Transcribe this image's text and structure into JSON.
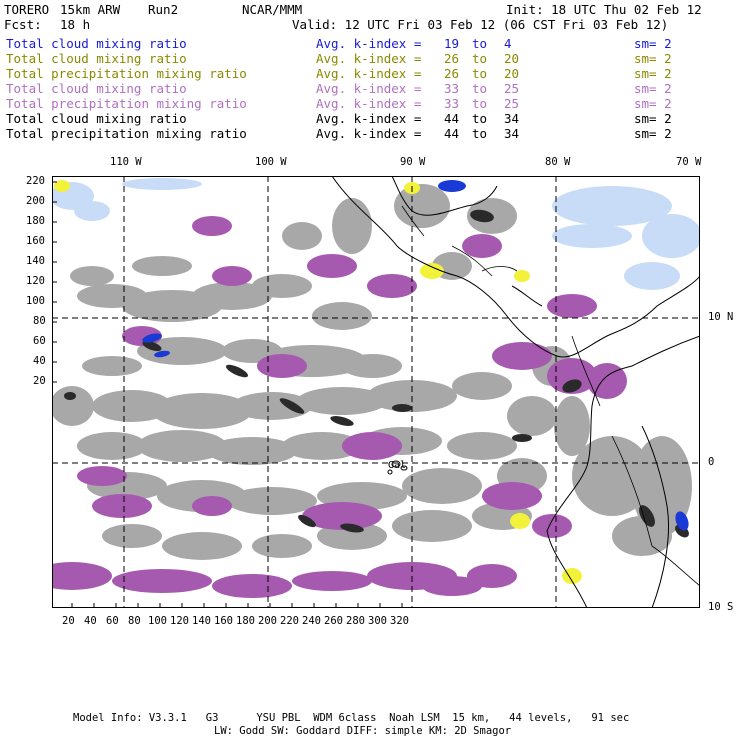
{
  "header": {
    "model": "TORERO",
    "resolution": "15km ARW",
    "run": "Run2",
    "org": "NCAR/MMM",
    "init": "Init: 18 UTC Thu 02 Feb 12",
    "fcst_label": "Fcst:",
    "fcst_value": "18 h",
    "valid": "Valid: 12 UTC Fri 03 Feb 12 (06 CST Fri 03 Feb 12)"
  },
  "legend": [
    {
      "field": "Total cloud mixing ratio",
      "kindex": "Avg. k-index =",
      "from": "19",
      "to_word": "to",
      "to": "4",
      "sm": "sm= 2",
      "color": "#1a1ad6"
    },
    {
      "field": "Total cloud mixing ratio",
      "kindex": "Avg. k-index =",
      "from": "26",
      "to_word": "to",
      "to": "20",
      "sm": "sm= 2",
      "color": "#8a8a00"
    },
    {
      "field": "Total precipitation mixing ratio",
      "kindex": "Avg. k-index =",
      "from": "26",
      "to_word": "to",
      "to": "20",
      "sm": "sm= 2",
      "color": "#8a8a00"
    },
    {
      "field": "Total cloud mixing ratio",
      "kindex": "Avg. k-index =",
      "from": "33",
      "to_word": "to",
      "to": "25",
      "sm": "sm= 2",
      "color": "#b070c0"
    },
    {
      "field": "Total precipitation mixing ratio",
      "kindex": "Avg. k-index =",
      "from": "33",
      "to_word": "to",
      "to": "25",
      "sm": "sm= 2",
      "color": "#b070c0"
    },
    {
      "field": "Total cloud mixing ratio",
      "kindex": "Avg. k-index =",
      "from": "44",
      "to_word": "to",
      "to": "34",
      "sm": "sm= 2",
      "color": "#000000"
    },
    {
      "field": "Total precipitation mixing ratio",
      "kindex": "Avg. k-index =",
      "from": "44",
      "to_word": "to",
      "to": "34",
      "sm": "sm= 2",
      "color": "#000000"
    }
  ],
  "map": {
    "longitude_labels": [
      "110 W",
      "100 W",
      "90 W",
      "80 W",
      "70 W"
    ],
    "latitude_labels": [
      "10 N",
      "0",
      "10 S"
    ],
    "y_axis_ticks": [
      "220",
      "200",
      "180",
      "160",
      "140",
      "120",
      "100",
      "80",
      "60",
      "40",
      "20"
    ],
    "x_axis_ticks": [
      "20",
      "40",
      "60",
      "80",
      "100",
      "120",
      "140",
      "160",
      "180",
      "200",
      "220",
      "240",
      "260",
      "280",
      "300",
      "320"
    ],
    "place_label": "Gal",
    "colors": {
      "cloud_gray": "#a8a8a8",
      "precip_purple": "#a65aaf",
      "dark_core": "#2a2a2a",
      "yellow": "#f2f23a",
      "light_blue": "#c8dcf8",
      "blue": "#1a3ad6",
      "coast": "#000000"
    }
  },
  "footer": {
    "line1": "Model Info: V3.3.1   G3      YSU PBL  WDM 6class  Noah LSM  15 km,   44 levels,   91 sec",
    "line2": "LW: Godd SW: Goddard DIFF: simple KM: 2D Smagor"
  }
}
